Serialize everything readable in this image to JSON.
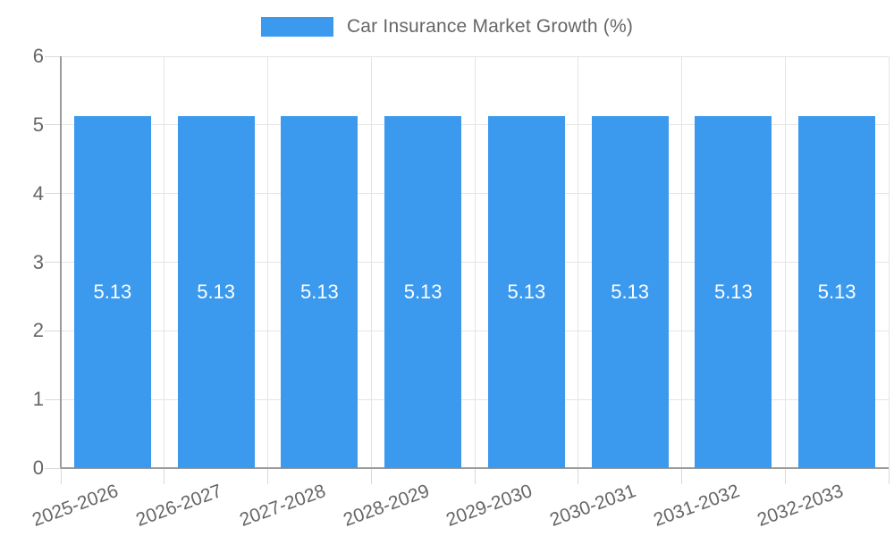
{
  "chart_data": {
    "type": "bar",
    "title": "Car Insurance Market Growth (%)",
    "categories": [
      "2025-2026",
      "2026-2027",
      "2027-2028",
      "2028-2029",
      "2029-2030",
      "2030-2031",
      "2031-2032",
      "2032-2033"
    ],
    "values": [
      5.13,
      5.13,
      5.13,
      5.13,
      5.13,
      5.13,
      5.13,
      5.13
    ],
    "value_labels": [
      "5.13",
      "5.13",
      "5.13",
      "5.13",
      "5.13",
      "5.13",
      "5.13",
      "5.13"
    ],
    "xlabel": "",
    "ylabel": "",
    "ylim": [
      0,
      6
    ],
    "yticks": [
      0,
      1,
      2,
      3,
      4,
      5,
      6
    ],
    "grid": true,
    "legend_position": "top-center",
    "bar_color": "#3b99ee",
    "bar_label_color": "#ffffff",
    "axis_text_color": "#666666",
    "axis_line_color": "#9b9b9b",
    "gridline_color": "#e4e4e4"
  }
}
